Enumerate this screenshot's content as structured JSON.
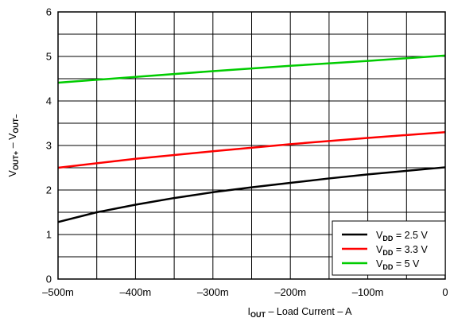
{
  "chart_data": {
    "type": "line",
    "xlabel": {
      "main": "I",
      "sub": "OUT",
      "rest": " – Load Current – A"
    },
    "ylabel": {
      "a": "V",
      "a_sub": "OUT+",
      "mid": " – V",
      "b_sub": "OUT–"
    },
    "xlim": [
      -500,
      0
    ],
    "ylim": [
      0,
      6
    ],
    "grid": true,
    "x_ticks": [
      {
        "value": -500,
        "label": "–500m"
      },
      {
        "value": -400,
        "label": "–400m"
      },
      {
        "value": -300,
        "label": "–300m"
      },
      {
        "value": -200,
        "label": "–200m"
      },
      {
        "value": -100,
        "label": "–100m"
      },
      {
        "value": 0,
        "label": "0"
      }
    ],
    "y_ticks": [
      {
        "value": 0,
        "label": "0"
      },
      {
        "value": 1,
        "label": "1"
      },
      {
        "value": 2,
        "label": "2"
      },
      {
        "value": 3,
        "label": "3"
      },
      {
        "value": 4,
        "label": "4"
      },
      {
        "value": 5,
        "label": "5"
      },
      {
        "value": 6,
        "label": "6"
      }
    ],
    "x_minor_step": 50,
    "y_minor_step": 0.5,
    "legend_position": "bottom-right",
    "series": [
      {
        "name": {
          "main": "V",
          "sub": "DD",
          "rest": " = 2.5 V"
        },
        "color": "#000000",
        "points": [
          [
            -500,
            1.28
          ],
          [
            -450,
            1.5
          ],
          [
            -400,
            1.67
          ],
          [
            -350,
            1.82
          ],
          [
            -300,
            1.95
          ],
          [
            -250,
            2.06
          ],
          [
            -200,
            2.16
          ],
          [
            -150,
            2.26
          ],
          [
            -100,
            2.35
          ],
          [
            -50,
            2.43
          ],
          [
            0,
            2.51
          ]
        ]
      },
      {
        "name": {
          "main": "V",
          "sub": "DD",
          "rest": " = 3.3 V"
        },
        "color": "#ff0000",
        "points": [
          [
            -500,
            2.5
          ],
          [
            -400,
            2.7
          ],
          [
            -300,
            2.87
          ],
          [
            -200,
            3.03
          ],
          [
            -100,
            3.17
          ],
          [
            0,
            3.3
          ]
        ]
      },
      {
        "name": {
          "main": "V",
          "sub": "DD",
          "rest": " = 5 V"
        },
        "color": "#00cc00",
        "points": [
          [
            -500,
            4.41
          ],
          [
            -400,
            4.54
          ],
          [
            -300,
            4.67
          ],
          [
            -200,
            4.79
          ],
          [
            -100,
            4.9
          ],
          [
            0,
            5.02
          ]
        ]
      }
    ]
  }
}
